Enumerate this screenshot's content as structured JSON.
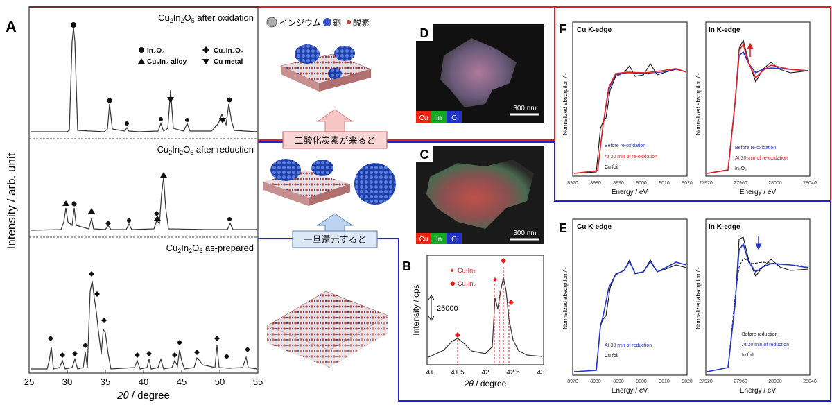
{
  "panels": {
    "A": "A",
    "B": "B",
    "C": "C",
    "D": "D",
    "E": "E",
    "F": "F"
  },
  "panelA": {
    "ylabel": "Intensity / arb. unit",
    "xlabel_italic": "2θ",
    "xlabel_rest": " / degree",
    "xticks": [
      "25",
      "30",
      "35",
      "40",
      "45",
      "50",
      "55"
    ],
    "top_title_pre": "Cu",
    "top_title_sub1": "2",
    "top_title_mid": "In",
    "top_title_sub2": "2",
    "top_title_mid2": "O",
    "top_title_sub3": "5",
    "top_title_post": " after oxidation",
    "mid_title_post": " after reduction",
    "bot_title_post": " as-prepared",
    "legend": {
      "in2o3": "In₂O₃",
      "cu2in2o5": "Cu₂In₂O₅",
      "cu4in_alloy": "Cu₄In₃ alloy",
      "cu_metal": "Cu metal"
    }
  },
  "center": {
    "legend_in": "インジウム",
    "legend_cu": "銅",
    "legend_o": "酸素",
    "arrow_up_text": "二酸化炭素が来ると",
    "arrow_reduce_text": "一旦還元すると"
  },
  "micro": {
    "scale_d": "300 nm",
    "scale_c": "300 nm",
    "ch_cu": "Cu",
    "ch_in": "In",
    "ch_o": "O"
  },
  "panelB": {
    "ylabel": "Intensity / cps",
    "xlabel_italic": "2θ",
    "xlabel_rest": " / degree",
    "xticks": [
      "41",
      "41.5",
      "42",
      "42.5",
      "43"
    ],
    "scale_value": "25000",
    "legend1": "Cu₇In₃",
    "legend2": "Cu₂In₃"
  },
  "xas": {
    "title_cu": "Cu K-edge",
    "title_in": "In K-edge",
    "ylabel": "Normalized absorption / -",
    "xlabel": "Energy / eV",
    "cu_xticks": [
      "8970",
      "8980",
      "8990",
      "9000",
      "9010",
      "9020"
    ],
    "in_xticks": [
      "27920",
      "27960",
      "28000",
      "28040"
    ],
    "F_cu_leg": [
      "Before re-oxidation",
      "At 30 min of re-oxidation",
      "Cu foil"
    ],
    "F_in_leg": [
      "Before re-oxidation",
      "At 30 min of re-oxidation",
      "In₂O₃"
    ],
    "E_cu_leg": [
      "At 30 min of reduction",
      "Cu foil"
    ],
    "E_in_leg": [
      "Before reduction",
      "At 30 min of reduction",
      "In foil"
    ],
    "colors": {
      "blue": "#2233cc",
      "red": "#e02020",
      "black": "#111111"
    }
  }
}
